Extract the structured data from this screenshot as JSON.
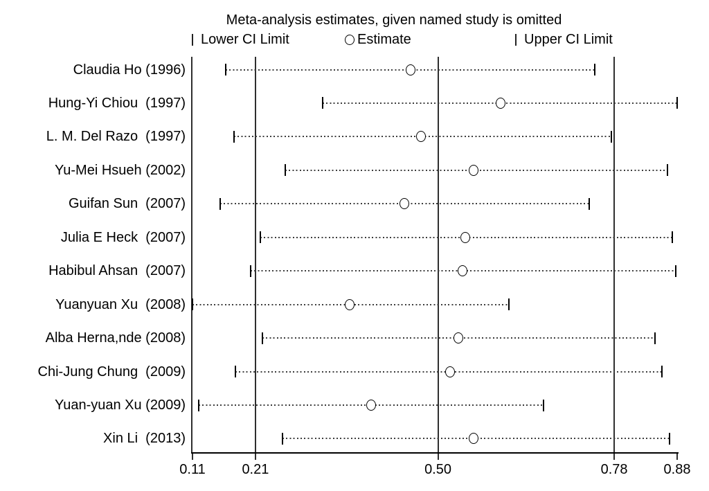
{
  "page": {
    "background": "#ffffff",
    "text_color": "#000000",
    "marker_stroke": "#000000",
    "marker_fill": "#ffffff"
  },
  "chart_data": {
    "type": "scatter",
    "subtype": "leave-one-out-sensitivity-forest-plot",
    "title": "Meta-analysis estimates, given named study is omitted",
    "legend_position": "top",
    "legend": {
      "lower_label": "Lower CI Limit",
      "estimate_label": "Estimate",
      "upper_label": "Upper CI Limit"
    },
    "xlabel": "",
    "ylabel": "",
    "xlim": [
      0.11,
      0.88
    ],
    "x_tick_values": [
      0.11,
      0.21,
      0.5,
      0.78,
      0.88
    ],
    "x_tick_labels": [
      "0.11",
      "0.21",
      "0.50",
      "0.78",
      "0.88"
    ],
    "ref_line_values": [
      0.21,
      0.5,
      0.78
    ],
    "grid": "vertical reference lines at overall lower CI, overall estimate, overall upper CI",
    "studies": [
      {
        "label": "Claudia Ho (1996)",
        "lower": 0.163,
        "estimate": 0.456,
        "upper": 0.749
      },
      {
        "label": "Hung-Yi Chiou  (1997)",
        "lower": 0.317,
        "estimate": 0.599,
        "upper": 0.88
      },
      {
        "label": "L. M. Del Razo  (1997)",
        "lower": 0.176,
        "estimate": 0.473,
        "upper": 0.776
      },
      {
        "label": "Yu-Mei Hsueh (2002)",
        "lower": 0.257,
        "estimate": 0.557,
        "upper": 0.865
      },
      {
        "label": "Guifan Sun  (2007)",
        "lower": 0.154,
        "estimate": 0.447,
        "upper": 0.74
      },
      {
        "label": "Julia E Heck  (2007)",
        "lower": 0.218,
        "estimate": 0.543,
        "upper": 0.872
      },
      {
        "label": "Habibul Ahsan  (2007)",
        "lower": 0.202,
        "estimate": 0.539,
        "upper": 0.878
      },
      {
        "label": "Yuanyuan Xu  (2008)",
        "lower": 0.11,
        "estimate": 0.36,
        "upper": 0.613
      },
      {
        "label": "Alba Herna,nde (2008)",
        "lower": 0.221,
        "estimate": 0.532,
        "upper": 0.845
      },
      {
        "label": "Chi-Jung Chung  (2009)",
        "lower": 0.178,
        "estimate": 0.519,
        "upper": 0.856
      },
      {
        "label": "Yuan-yuan Xu (2009)",
        "lower": 0.12,
        "estimate": 0.394,
        "upper": 0.668
      },
      {
        "label": "Xin Li  (2013)",
        "lower": 0.253,
        "estimate": 0.557,
        "upper": 0.868
      }
    ]
  }
}
